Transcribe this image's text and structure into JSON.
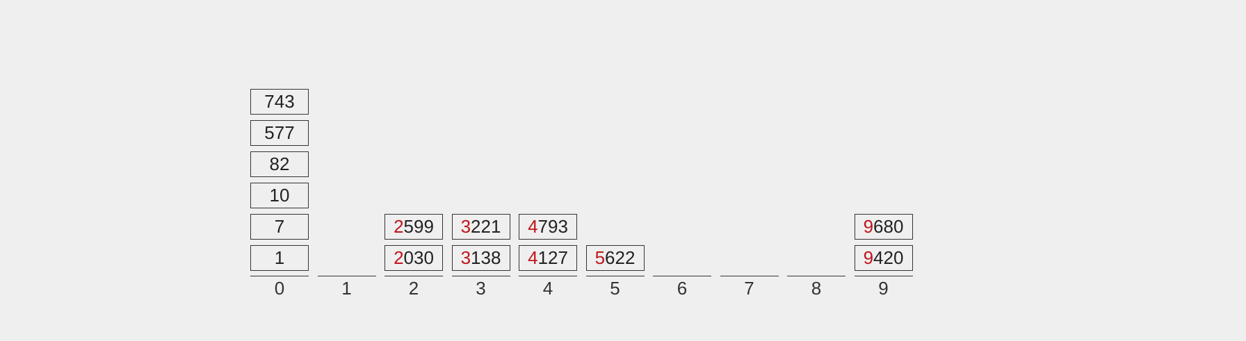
{
  "colors": {
    "background": "#efefef",
    "text": "#222222",
    "highlight_digit": "#c0151b",
    "line": "#333333"
  },
  "buckets": [
    {
      "label": "0",
      "items": [
        "1",
        "7",
        "10",
        "82",
        "577",
        "743"
      ]
    },
    {
      "label": "1",
      "items": []
    },
    {
      "label": "2",
      "items": [
        "2030",
        "2599"
      ]
    },
    {
      "label": "3",
      "items": [
        "3138",
        "3221"
      ]
    },
    {
      "label": "4",
      "items": [
        "4127",
        "4793"
      ]
    },
    {
      "label": "5",
      "items": [
        "5622"
      ]
    },
    {
      "label": "6",
      "items": []
    },
    {
      "label": "7",
      "items": []
    },
    {
      "label": "8",
      "items": []
    },
    {
      "label": "9",
      "items": [
        "9420",
        "9680"
      ]
    }
  ],
  "highlight_rule": "leading digit highlighted when number has 4 digits"
}
